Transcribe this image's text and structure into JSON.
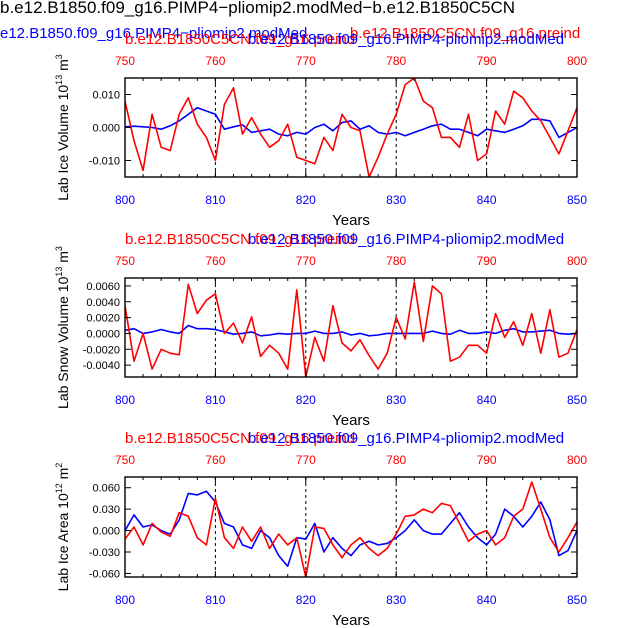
{
  "page_title": "b.e12.B1850.f09_g16.PIMP4−pliomip2.modMed−b.e12.B1850C5CN",
  "overlap_title_blue": "e12.B1850.f09_g16.PIMP4−pliomip2.modMed",
  "overlap_title_red": "b.e12.B1850C5CN.f09_g16.preind",
  "colors": {
    "red": "#ff0000",
    "blue": "#0000ff",
    "black": "#000000"
  },
  "chart_data": [
    {
      "type": "line",
      "ylabel_main": "Lab Ice Volume 10",
      "ylabel_exp": "13",
      "ylabel_unit": " m",
      "ylabel_unit_exp": "3",
      "xlabel": "Years",
      "series_labels": {
        "red": "b.e12.B1850C5CN.f09_g16.preind",
        "blue": "b.e12.B1850.f09_g16.PIMP4-pliomip2.modMed"
      },
      "bottom_xlim": [
        800,
        850
      ],
      "bottom_ticks": [
        "800",
        "810",
        "820",
        "830",
        "840",
        "850"
      ],
      "top_xlim": [
        750,
        800
      ],
      "top_ticks": [
        "750",
        "760",
        "770",
        "780",
        "790",
        "800"
      ],
      "ylim": [
        -0.015,
        0.015
      ],
      "yticks": [
        0.01,
        0.0,
        -0.01
      ],
      "ytick_labels": [
        "0.010",
        "0.000",
        "-0.010"
      ],
      "vlines": [
        810,
        820,
        830,
        840
      ],
      "series": [
        {
          "name": "pliomip2.modMed",
          "color": "blue",
          "x_start": 800,
          "values": [
            0.0002,
            0.0004,
            0.0002,
            0.0,
            -0.0005,
            0.0005,
            0.002,
            0.004,
            0.006,
            0.005,
            0.004,
            -0.0005,
            0.0002,
            0.0008,
            -0.0015,
            -0.001,
            -0.0005,
            -0.002,
            -0.0025,
            -0.0015,
            -0.002,
            0.0,
            0.001,
            -0.001,
            0.0015,
            0.002,
            -0.0005,
            0.0005,
            -0.0015,
            -0.002,
            -0.0015,
            -0.0025,
            -0.0015,
            -0.0005,
            0.0005,
            0.001,
            -0.0005,
            -0.0005,
            -0.0015,
            -0.0025,
            -0.0005,
            -0.001,
            -0.0015,
            -0.0005,
            0.0005,
            0.0025,
            0.0025,
            0.002,
            -0.003,
            -0.0015,
            0.0
          ]
        },
        {
          "name": "preind",
          "color": "red",
          "x_start": 800,
          "values": [
            0.008,
            -0.004,
            -0.013,
            0.004,
            -0.006,
            -0.007,
            0.004,
            0.009,
            0.001,
            -0.003,
            -0.01,
            0.007,
            0.012,
            -0.002,
            0.003,
            -0.002,
            -0.006,
            -0.004,
            0.001,
            -0.009,
            -0.01,
            -0.011,
            -0.003,
            -0.007,
            0.004,
            0.0,
            -0.001,
            -0.015,
            -0.009,
            -0.002,
            0.004,
            0.013,
            0.015,
            0.008,
            0.006,
            -0.003,
            -0.003,
            -0.006,
            0.004,
            -0.01,
            -0.008,
            0.005,
            0.001,
            0.011,
            0.009,
            0.005,
            0.002,
            -0.003,
            -0.008,
            -0.001,
            0.006
          ]
        }
      ]
    },
    {
      "type": "line",
      "ylabel_main": "Lab Snow Volume 10",
      "ylabel_exp": "13",
      "ylabel_unit": " m",
      "ylabel_unit_exp": "3",
      "xlabel": "Years",
      "series_labels": {
        "red": "b.e12.B1850C5CN.f09_g16.preind",
        "blue": "b.e12.B1850.f09_g16.PIMP4-pliomip2.modMed"
      },
      "bottom_xlim": [
        800,
        850
      ],
      "bottom_ticks": [
        "800",
        "810",
        "820",
        "830",
        "840",
        "850"
      ],
      "top_xlim": [
        750,
        800
      ],
      "top_ticks": [
        "750",
        "760",
        "770",
        "780",
        "790",
        "800"
      ],
      "ylim": [
        -0.0055,
        0.007
      ],
      "yticks": [
        0.006,
        0.004,
        0.002,
        0.0,
        -0.002,
        -0.004
      ],
      "ytick_labels": [
        "0.0060",
        "0.0040",
        "0.0020",
        "0.0000",
        "-0.0020",
        "-0.0040"
      ],
      "vlines": [
        810,
        820,
        830,
        840
      ],
      "series": [
        {
          "name": "pliomip2.modMed",
          "color": "blue",
          "x_start": 800,
          "values": [
            0.0004,
            0.0006,
            0.0,
            0.0002,
            0.0005,
            0.0002,
            0.0,
            0.001,
            0.0006,
            0.0006,
            0.0005,
            0.0002,
            -0.0001,
            0.0,
            0.0002,
            -0.0003,
            -0.0002,
            0.0,
            -0.0001,
            0.0,
            0.0,
            0.0003,
            0.0,
            0.0,
            0.0002,
            -0.0002,
            0.0,
            -0.0003,
            -0.0002,
            0.0,
            0.0,
            0.0,
            0.0,
            0.0,
            0.0003,
            0.0,
            -0.0001,
            0.0004,
            0.0,
            0.0,
            0.0002,
            0.0,
            0.0004,
            0.0006,
            0.0002,
            0.0002,
            0.0003,
            0.0004,
            0.0,
            -0.0001,
            0.0
          ]
        },
        {
          "name": "preind",
          "color": "red",
          "x_start": 800,
          "values": [
            0.0035,
            -0.0035,
            0.0,
            -0.0045,
            -0.002,
            -0.0025,
            -0.0027,
            0.0062,
            0.0025,
            0.0042,
            0.005,
            0.0,
            0.0013,
            -0.0012,
            0.0021,
            -0.0029,
            -0.0015,
            -0.0025,
            -0.0045,
            0.0055,
            -0.0055,
            -0.0005,
            -0.0035,
            0.0035,
            -0.0012,
            -0.0022,
            -0.0008,
            -0.0028,
            -0.0045,
            -0.0025,
            0.002,
            -0.0007,
            0.0065,
            -0.001,
            0.006,
            0.005,
            -0.0035,
            -0.003,
            -0.0015,
            -0.0015,
            -0.0025,
            0.0025,
            -0.0005,
            0.0015,
            -0.0015,
            0.0025,
            -0.0025,
            0.003,
            -0.003,
            -0.0025,
            0.0005
          ]
        }
      ]
    },
    {
      "type": "line",
      "ylabel_main": "Lab Ice Area 10",
      "ylabel_exp": "12",
      "ylabel_unit": " m",
      "ylabel_unit_exp": "2",
      "xlabel": "Years",
      "series_labels": {
        "red": "b.e12.B1850C5CN.f09_g16.preind",
        "blue": "b.e12.B1850.f09_g16.PIMP4-pliomip2.modMed"
      },
      "bottom_xlim": [
        800,
        850
      ],
      "bottom_ticks": [
        "800",
        "810",
        "820",
        "830",
        "840",
        "850"
      ],
      "top_xlim": [
        750,
        800
      ],
      "top_ticks": [
        "750",
        "760",
        "770",
        "780",
        "790",
        "800"
      ],
      "ylim": [
        -0.065,
        0.075
      ],
      "yticks": [
        0.06,
        0.03,
        0.0,
        -0.03,
        -0.06
      ],
      "ytick_labels": [
        "0.060",
        "0.030",
        "0.000",
        "-0.030",
        "-0.060"
      ],
      "vlines": [
        810,
        820,
        830,
        840
      ],
      "series": [
        {
          "name": "pliomip2.modMed",
          "color": "blue",
          "x_start": 800,
          "values": [
            0.0,
            0.022,
            0.005,
            0.008,
            0.0,
            -0.005,
            0.015,
            0.052,
            0.05,
            0.055,
            0.04,
            0.01,
            0.005,
            -0.02,
            -0.025,
            0.0,
            -0.01,
            -0.035,
            -0.05,
            -0.01,
            -0.012,
            0.01,
            -0.03,
            -0.01,
            -0.025,
            -0.035,
            -0.02,
            -0.015,
            -0.02,
            -0.018,
            -0.01,
            0.0,
            0.015,
            0.0,
            -0.005,
            -0.005,
            0.01,
            0.025,
            0.005,
            -0.01,
            -0.02,
            -0.005,
            0.03,
            0.02,
            0.005,
            0.02,
            0.04,
            0.015,
            -0.035,
            -0.028,
            0.0
          ]
        },
        {
          "name": "preind",
          "color": "red",
          "x_start": 800,
          "values": [
            -0.012,
            0.005,
            -0.02,
            0.01,
            -0.002,
            -0.008,
            0.025,
            0.02,
            -0.01,
            -0.02,
            0.045,
            -0.01,
            -0.025,
            0.005,
            -0.015,
            0.005,
            -0.025,
            -0.005,
            -0.02,
            -0.01,
            -0.065,
            0.005,
            0.003,
            -0.02,
            -0.038,
            -0.02,
            -0.01,
            -0.025,
            -0.035,
            -0.025,
            -0.005,
            0.02,
            0.022,
            0.03,
            0.025,
            0.038,
            0.035,
            0.01,
            -0.015,
            -0.005,
            0.0,
            -0.02,
            -0.01,
            0.02,
            0.03,
            0.068,
            0.03,
            -0.01,
            -0.03,
            -0.01,
            0.012
          ]
        }
      ]
    }
  ]
}
